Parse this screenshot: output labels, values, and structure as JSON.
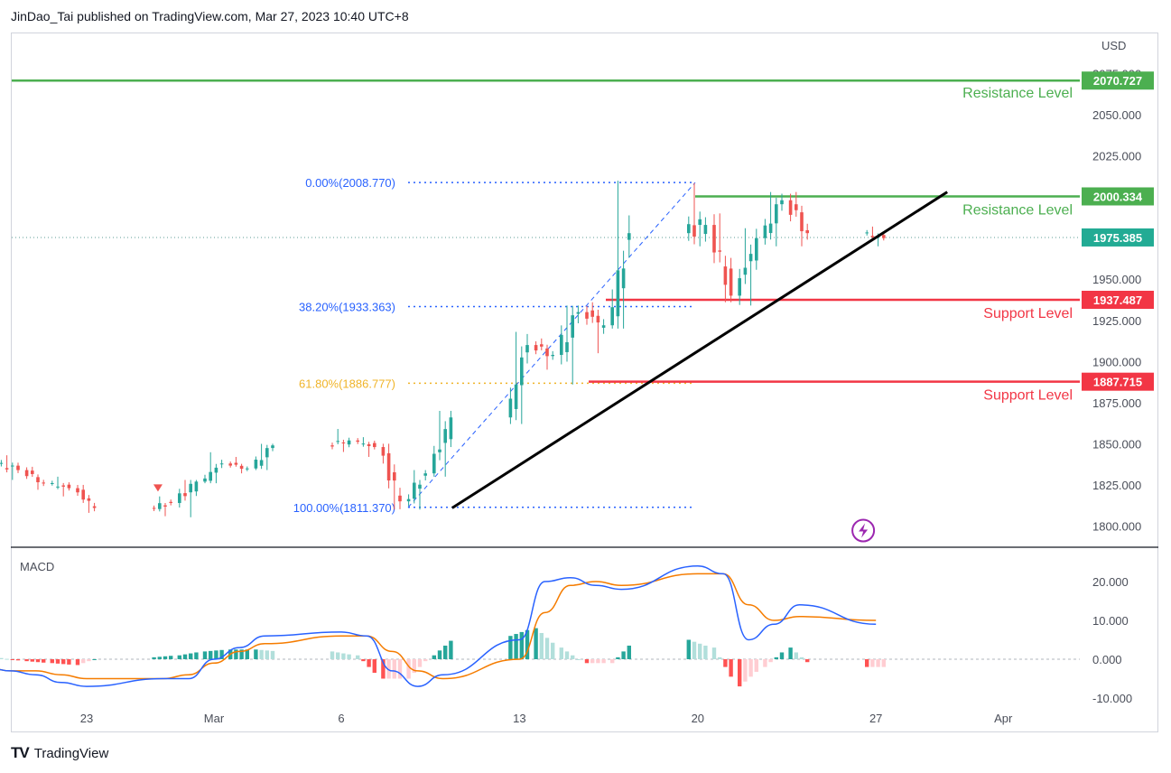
{
  "header": {
    "published_text": "JinDao_Tai published on TradingView.com, Mar 27, 2023 10:40 UTC+8"
  },
  "footer": {
    "brand_logo": "TV",
    "brand_name": "TradingView"
  },
  "colors": {
    "up": "#26a69a",
    "down": "#ef5350",
    "resistance": "#4caf50",
    "support": "#f23645",
    "fib": "#2962ff",
    "fib618": "#f0b429",
    "macd": "#2962ff",
    "signal": "#f57c00",
    "trendline": "#000000",
    "price_tag": "#22ab94"
  },
  "chart_data": [
    {
      "type": "candlestick",
      "currency_label": "USD",
      "ylim": [
        1795,
        2085
      ],
      "y_ticks": [
        "2075.000",
        "2050.000",
        "2025.000",
        "2000.000",
        "1975.000",
        "1950.000",
        "1925.000",
        "1900.000",
        "1875.000",
        "1850.000",
        "1825.000",
        "1800.000"
      ],
      "x_ticks": [
        "23",
        "Mar",
        "6",
        "13",
        "20",
        "27",
        "Apr"
      ],
      "x_tick_days": [
        -5,
        0,
        5,
        12,
        19,
        26,
        31
      ],
      "trading_days": [
        "Feb 20",
        "Feb 21",
        "Feb 22",
        "Feb 23",
        "Feb 24",
        "Feb 27",
        "Feb 28",
        "Mar 1",
        "Mar 2",
        "Mar 3",
        "Mar 6",
        "Mar 7",
        "Mar 8",
        "Mar 9",
        "Mar 10",
        "Mar 13",
        "Mar 14",
        "Mar 15",
        "Mar 16",
        "Mar 17",
        "Mar 20",
        "Mar 21",
        "Mar 22",
        "Mar 23",
        "Mar 24",
        "Mar 27"
      ],
      "daily_ohlc": [
        [
          1842,
          1846,
          1833,
          1838
        ],
        [
          1838,
          1843,
          1828,
          1834
        ],
        [
          1834,
          1836,
          1822,
          1826
        ],
        [
          1826,
          1830,
          1818,
          1823
        ],
        [
          1823,
          1825,
          1808,
          1811
        ],
        [
          1811,
          1818,
          1806,
          1814
        ],
        [
          1814,
          1828,
          1805,
          1827
        ],
        [
          1827,
          1845,
          1826,
          1838
        ],
        [
          1838,
          1842,
          1832,
          1835
        ],
        [
          1835,
          1850,
          1834,
          1849
        ],
        [
          1849,
          1859,
          1845,
          1852
        ],
        [
          1852,
          1854,
          1842,
          1848
        ],
        [
          1848,
          1850,
          1810,
          1815
        ],
        [
          1815,
          1834,
          1810,
          1832
        ],
        [
          1832,
          1870,
          1830,
          1866
        ],
        [
          1866,
          1918,
          1862,
          1910
        ],
        [
          1910,
          1914,
          1895,
          1904
        ],
        [
          1904,
          1934,
          1886,
          1930
        ],
        [
          1930,
          1936,
          1905,
          1922
        ],
        [
          1922,
          2010,
          1920,
          1978
        ],
        [
          1978,
          2009,
          1970,
          1983
        ],
        [
          1983,
          1990,
          1936,
          1940
        ],
        [
          1940,
          1981,
          1934,
          1975
        ],
        [
          1975,
          2003,
          1970,
          1998
        ],
        [
          1998,
          2003,
          1970,
          1978
        ],
        [
          1978,
          1982,
          1970,
          1975
        ]
      ],
      "last_price": "1975.385",
      "fibonacci": [
        {
          "label": "0.00%(2008.770)",
          "value": 2008.77
        },
        {
          "label": "38.20%(1933.363)",
          "value": 1933.363
        },
        {
          "label": "61.80%(1886.777)",
          "value": 1886.777
        },
        {
          "label": "100.00%(1811.370)",
          "value": 1811.37
        }
      ],
      "levels": [
        {
          "kind": "resistance",
          "label": "Resistance Level",
          "value": 2070.727,
          "tag": "2070.727"
        },
        {
          "kind": "resistance",
          "label": "Resistance Level",
          "value": 2000.334,
          "tag": "2000.334"
        },
        {
          "kind": "support",
          "label": "Support Level",
          "value": 1937.487,
          "tag": "1937.487"
        },
        {
          "kind": "support",
          "label": "Support Level",
          "value": 1887.715,
          "tag": "1887.715"
        }
      ],
      "trendline": {
        "from": {
          "day": "Mar 10",
          "value": 1811
        },
        "to": {
          "day": "Mar 29",
          "value": 2003
        }
      },
      "marker_icon": "lightning-icon"
    },
    {
      "type": "line+histogram",
      "title": "MACD",
      "ylim": [
        -11,
        27
      ],
      "y_ticks": [
        "20.000",
        "10.000",
        "0.000",
        "-10.000"
      ],
      "series": [
        {
          "values": [
            -2,
            -3,
            -4,
            -6,
            -7,
            -5,
            -5,
            0,
            3,
            6,
            7,
            6,
            -3,
            -7,
            -4,
            5,
            20,
            21,
            19,
            18,
            24,
            22,
            5,
            9,
            14,
            9
          ]
        },
        {
          "values": [
            -2,
            -3,
            -3,
            -4,
            -5,
            -5,
            -4,
            -1,
            2,
            4,
            6,
            6,
            2,
            -3,
            -5,
            0,
            12,
            19,
            20,
            19,
            22,
            22,
            14,
            10,
            11,
            10
          ]
        }
      ],
      "histogram": [
        0.5,
        0.3,
        -0.5,
        -1,
        -1.5,
        0.5,
        1,
        2,
        2.5,
        2.5,
        2,
        1,
        -5,
        -5,
        1,
        6,
        8,
        3,
        -1,
        -1,
        5,
        3,
        -7,
        -2,
        3,
        -2
      ]
    }
  ]
}
